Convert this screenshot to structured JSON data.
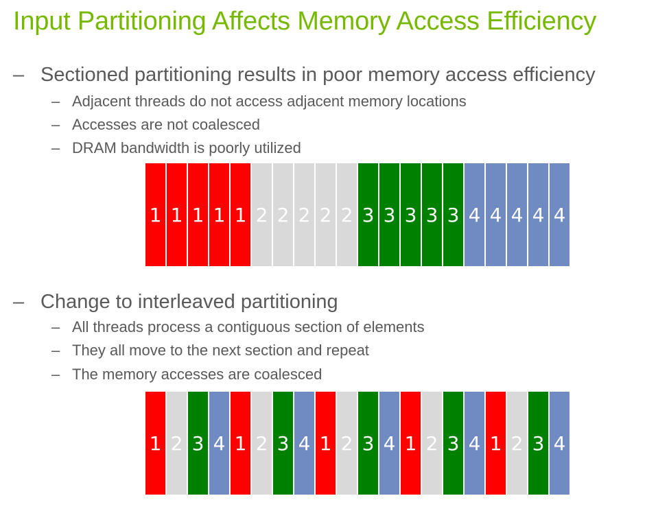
{
  "title": "Input Partitioning Affects Memory Access Efficiency",
  "dash": "–",
  "section1": {
    "heading": "Sectioned partitioning results in poor memory access efficiency",
    "points": [
      "Adjacent threads do not access adjacent memory locations",
      "Accesses are not coalesced",
      "DRAM bandwidth is poorly utilized"
    ],
    "strip": [
      "1",
      "1",
      "1",
      "1",
      "1",
      "2",
      "2",
      "2",
      "2",
      "2",
      "3",
      "3",
      "3",
      "3",
      "3",
      "4",
      "4",
      "4",
      "4",
      "4"
    ]
  },
  "section2": {
    "heading": "Change to interleaved partitioning",
    "points": [
      "All threads process a contiguous section of elements",
      "They all move to the next section and repeat",
      "The memory accesses are coalesced"
    ],
    "strip": [
      "1",
      "2",
      "3",
      "4",
      "1",
      "2",
      "3",
      "4",
      "1",
      "2",
      "3",
      "4",
      "1",
      "2",
      "3",
      "4",
      "1",
      "2",
      "3",
      "4"
    ]
  },
  "thread_colors": {
    "1": "#ff0000",
    "2": "#d9d9d9",
    "3": "#008000",
    "4": "#6f8bc2"
  },
  "title_color": "#76b900",
  "text_color": "#595959"
}
